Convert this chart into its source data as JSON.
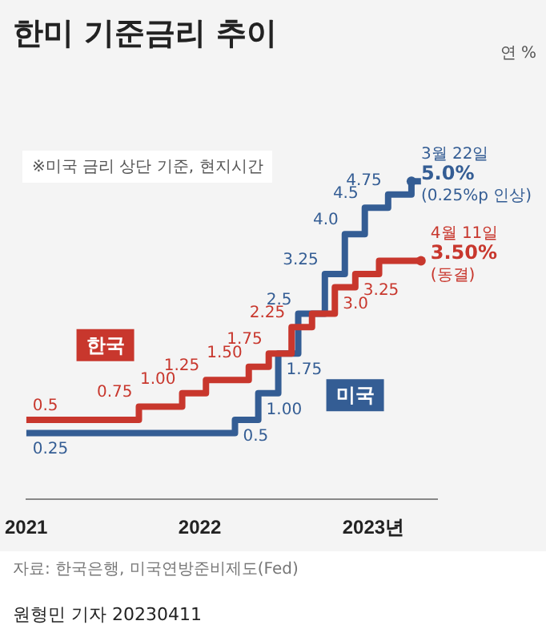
{
  "chart_data": {
    "type": "step",
    "title": "한미 기준금리 추이",
    "xlim": [
      "2021-01-01",
      "2023-05-15"
    ],
    "xticks": [
      "2021",
      "2022",
      {
        "value": "2023",
        "label": "2023년"
      }
    ],
    "tick_labels": "x",
    "legend": false,
    "series": [
      {
        "name": "한국",
        "color": "#c8372d",
        "x": [
          "2021-01-01",
          "2021-08-26",
          "2021-11-25",
          "2022-01-14",
          "2022-04-14",
          "2022-05-26",
          "2022-07-13",
          "2022-08-25",
          "2022-10-12",
          "2022-11-24",
          "2023-01-13",
          "2023-04-11"
        ],
        "values": [
          0.5,
          0.75,
          1.0,
          1.25,
          1.5,
          1.75,
          2.25,
          2.5,
          3.0,
          3.25,
          3.5,
          3.5
        ],
        "value_labels": [
          "0.5",
          "0.75",
          "1.00",
          "1.25",
          "1.50",
          "1.75",
          "2.25",
          null,
          "3.0",
          "3.25",
          null,
          null
        ]
      },
      {
        "name": "미국",
        "color": "#345d94",
        "x": [
          "2021-01-01",
          "2022-03-16",
          "2022-05-04",
          "2022-06-15",
          "2022-07-27",
          "2022-09-21",
          "2022-11-02",
          "2022-12-14",
          "2023-02-01",
          "2023-03-22",
          "2023-04-11"
        ],
        "values": [
          0.25,
          0.5,
          1.0,
          1.75,
          2.5,
          3.25,
          4.0,
          4.5,
          4.75,
          5.0,
          5.0
        ],
        "value_labels": [
          "0.25",
          "0.5",
          "1.00",
          "1.75",
          "2.5",
          "3.25",
          "4.0",
          "4.5",
          "4.75",
          null,
          null
        ]
      }
    ],
    "annotations": [
      "연 %",
      "※미국 금리 상단 기준, 현지시간",
      {
        "text": "3월 22일\n5.0%\n(0.25%p 인상)",
        "x": "2023-03-22",
        "y": 5.0
      },
      {
        "text": "4월 11일\n3.50%\n(동결)",
        "x": "2023-04-11",
        "y": 3.5
      },
      "자료: 한국은행, 미국연방준비제도(Fed)",
      "원형민 기자 20230411"
    ]
  }
}
